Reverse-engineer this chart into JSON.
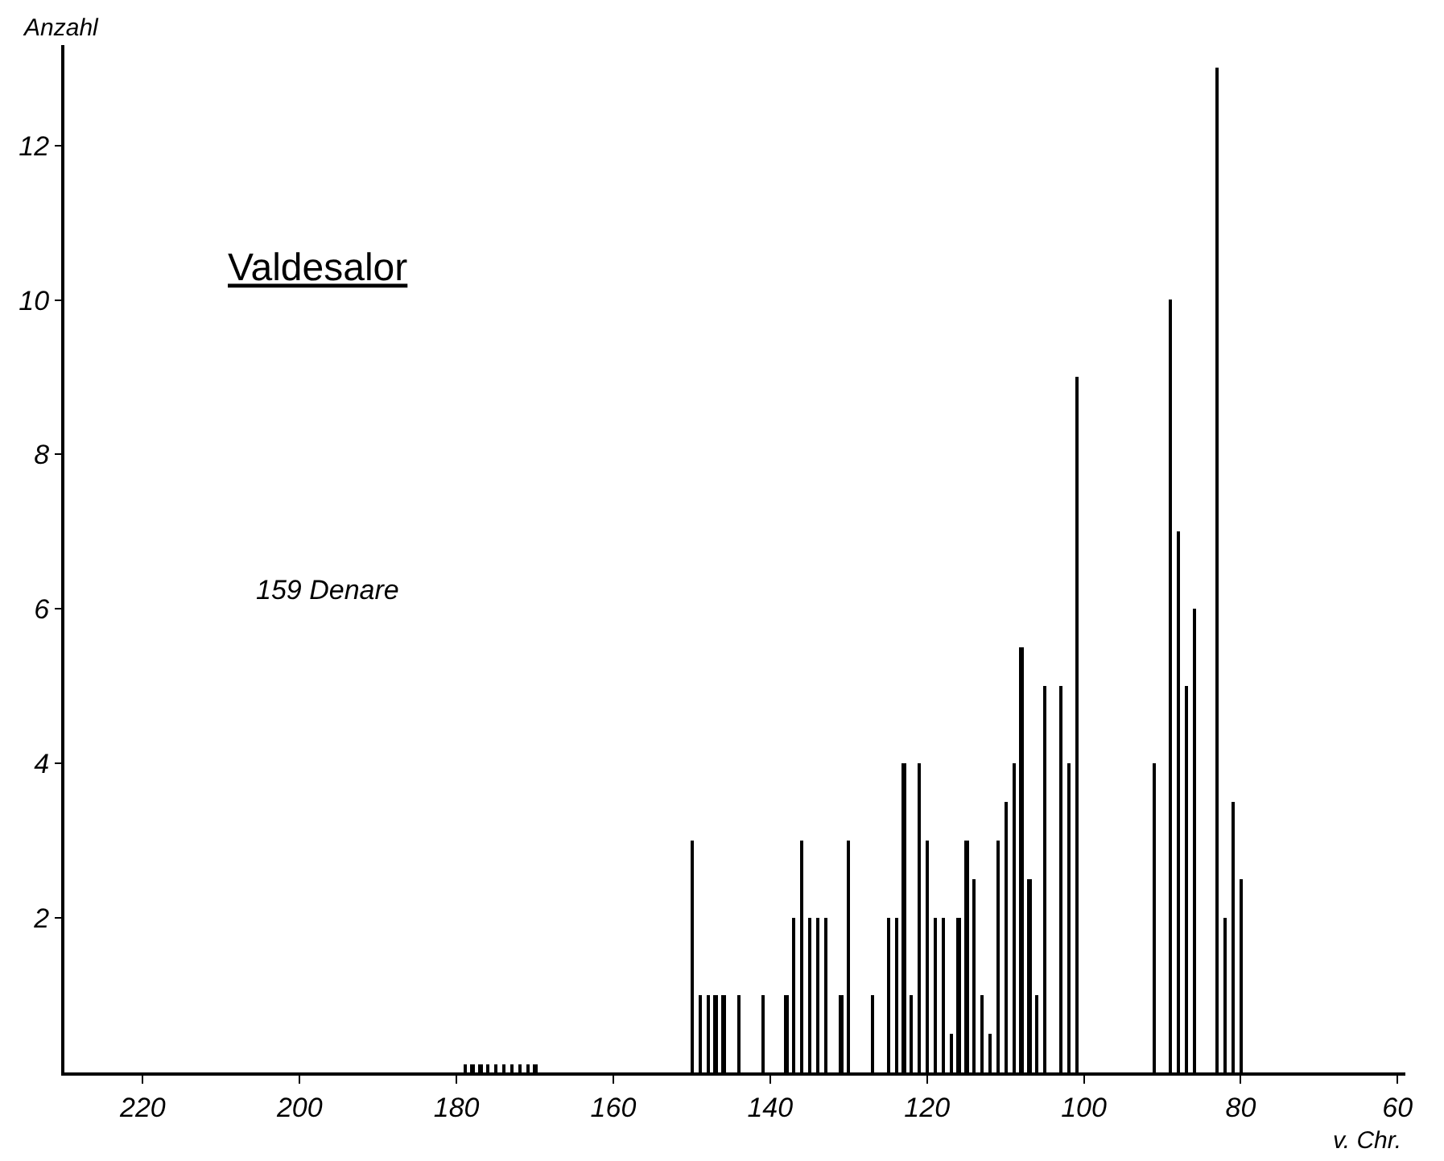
{
  "chart_data": {
    "type": "bar",
    "title": "Valdesalor",
    "xlabel": "v. Chr.",
    "ylabel": "Anzahl",
    "annotations": [
      "159 Denare"
    ],
    "series": [
      {
        "color": "#000000",
        "x": [
          179,
          178,
          177,
          176,
          175,
          174,
          173,
          172,
          171,
          170,
          150,
          149,
          148,
          147,
          146,
          144,
          141,
          138,
          137,
          136,
          135,
          134,
          133,
          131,
          130,
          127,
          125,
          124,
          123,
          122,
          121,
          120,
          119,
          118,
          117,
          116,
          115,
          114,
          113,
          112,
          111,
          110,
          109,
          108,
          107,
          106,
          105,
          103,
          102,
          101,
          91,
          89,
          88,
          87,
          86,
          83,
          82,
          81,
          80
        ],
        "values": [
          0.1,
          0.1,
          0.1,
          0.1,
          0.1,
          0.1,
          0.1,
          0.1,
          0.1,
          0.1,
          3,
          1,
          1,
          1,
          1,
          1,
          1,
          1,
          2,
          3,
          2,
          2,
          2,
          1,
          3,
          1,
          2,
          2,
          4,
          1,
          4,
          3,
          2,
          2,
          0.5,
          2,
          3,
          2.5,
          1,
          0.5,
          3,
          3.5,
          4,
          5.5,
          2.5,
          1,
          5,
          5,
          4,
          9,
          4,
          10,
          7,
          5,
          6,
          13,
          2,
          3.5,
          2.5
        ]
      }
    ],
    "xlim": [
      230,
      59
    ],
    "xticks": [
      220,
      200,
      180,
      160,
      140,
      120,
      100,
      80,
      60
    ],
    "ylim": [
      0,
      13.3
    ],
    "yticks": [
      2,
      4,
      6,
      8,
      10,
      12
    ]
  }
}
